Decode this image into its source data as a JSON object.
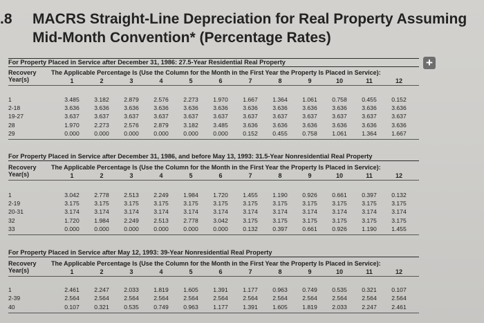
{
  "title": {
    "number": ".8",
    "line1": "MACRS Straight-Line Depreciation for Real Property Assuming",
    "line2": "Mid-Month Convention* (Percentage Rates)"
  },
  "expand_button": "+",
  "column_numbers": [
    "1",
    "2",
    "3",
    "4",
    "5",
    "6",
    "7",
    "8",
    "9",
    "10",
    "11",
    "12"
  ],
  "sections": [
    {
      "heading": "For Property Placed in Service after December 31, 1986: 27.5-Year Residential Real Property",
      "recovery_label_1": "Recovery",
      "recovery_label_2": "Year(s)",
      "applicable": "The Applicable Percentage Is (Use the Column for the Month in the First Year the Property Is Placed in Service):",
      "rows": [
        {
          "year": "1",
          "values": [
            "3.485",
            "3.182",
            "2.879",
            "2.576",
            "2.273",
            "1.970",
            "1.667",
            "1.364",
            "1.061",
            "0.758",
            "0.455",
            "0.152"
          ]
        },
        {
          "year": "2-18",
          "values": [
            "3.636",
            "3.636",
            "3.636",
            "3.636",
            "3.636",
            "3.636",
            "3.636",
            "3.636",
            "3.636",
            "3.636",
            "3.636",
            "3.636"
          ]
        },
        {
          "year": "19-27",
          "values": [
            "3.637",
            "3.637",
            "3.637",
            "3.637",
            "3.637",
            "3.637",
            "3.637",
            "3.637",
            "3.637",
            "3.637",
            "3.637",
            "3.637"
          ]
        },
        {
          "year": "28",
          "values": [
            "1.970",
            "2.273",
            "2.576",
            "2.879",
            "3.182",
            "3.485",
            "3.636",
            "3.636",
            "3.636",
            "3.636",
            "3.636",
            "3.636"
          ]
        },
        {
          "year": "29",
          "values": [
            "0.000",
            "0.000",
            "0.000",
            "0.000",
            "0.000",
            "0.000",
            "0.152",
            "0.455",
            "0.758",
            "1.061",
            "1.364",
            "1.667"
          ]
        }
      ]
    },
    {
      "heading": "For Property Placed in Service after December 31, 1986, and before May 13, 1993: 31.5-Year Nonresidential Real Property",
      "recovery_label_1": "Recovery",
      "recovery_label_2": "Year(s)",
      "applicable": "The Applicable Percentage Is (Use the Column for the Month in the First Year the Property Is Placed in Service):",
      "rows": [
        {
          "year": "1",
          "values": [
            "3.042",
            "2.778",
            "2.513",
            "2.249",
            "1.984",
            "1.720",
            "1.455",
            "1.190",
            "0.926",
            "0.661",
            "0.397",
            "0.132"
          ]
        },
        {
          "year": "2-19",
          "values": [
            "3.175",
            "3.175",
            "3.175",
            "3.175",
            "3.175",
            "3.175",
            "3.175",
            "3.175",
            "3.175",
            "3.175",
            "3.175",
            "3.175"
          ]
        },
        {
          "year": "20-31",
          "values": [
            "3.174",
            "3.174",
            "3.174",
            "3.174",
            "3.174",
            "3.174",
            "3.174",
            "3.174",
            "3.174",
            "3.174",
            "3.174",
            "3.174"
          ]
        },
        {
          "year": "32",
          "values": [
            "1.720",
            "1.984",
            "2.249",
            "2.513",
            "2.778",
            "3.042",
            "3.175",
            "3.175",
            "3.175",
            "3.175",
            "3.175",
            "3.175"
          ]
        },
        {
          "year": "33",
          "values": [
            "0.000",
            "0.000",
            "0.000",
            "0.000",
            "0.000",
            "0.000",
            "0.132",
            "0.397",
            "0.661",
            "0.926",
            "1.190",
            "1.455"
          ]
        }
      ]
    },
    {
      "heading": "For Property Placed in Service after May 12, 1993: 39-Year Nonresidential Real Property",
      "recovery_label_1": "Recovery",
      "recovery_label_2": "Year(s)",
      "applicable": "The Applicable Percentage Is (Use the Column for the Month in the First Year the Property Is Placed in Service):",
      "rows": [
        {
          "year": "1",
          "values": [
            "2.461",
            "2.247",
            "2.033",
            "1.819",
            "1.605",
            "1.391",
            "1.177",
            "0.963",
            "0.749",
            "0.535",
            "0.321",
            "0.107"
          ]
        },
        {
          "year": "2-39",
          "values": [
            "2.564",
            "2.564",
            "2.564",
            "2.564",
            "2.564",
            "2.564",
            "2.564",
            "2.564",
            "2.564",
            "2.564",
            "2.564",
            "2.564"
          ]
        },
        {
          "year": "40",
          "values": [
            "0.107",
            "0.321",
            "0.535",
            "0.749",
            "0.963",
            "1.177",
            "1.391",
            "1.605",
            "1.819",
            "2.033",
            "2.247",
            "2.461"
          ]
        }
      ]
    }
  ]
}
